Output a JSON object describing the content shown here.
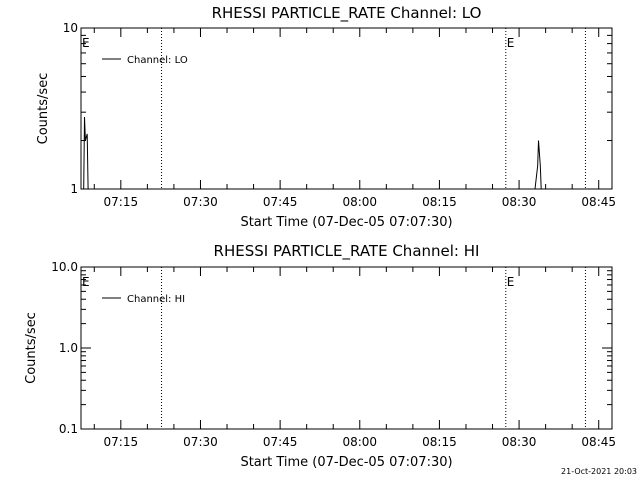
{
  "timestamp": "21-Oct-2021 20:03",
  "chart_data": [
    {
      "type": "line",
      "title": "RHESSI PARTICLE_RATE Channel: LO",
      "xlabel": "Start Time (07-Dec-05 07:07:30)",
      "ylabel": "Counts/sec",
      "yscale": "log",
      "ylim": [
        1,
        10
      ],
      "ytick_values": [
        1,
        10
      ],
      "ytick_labels": [
        "1",
        "10"
      ],
      "xlim": [
        "07:07:30",
        "08:47:30"
      ],
      "xtick_values": [
        "07:15",
        "07:30",
        "07:45",
        "08:00",
        "08:15",
        "08:30",
        "08:45"
      ],
      "xtick_labels": [
        "07:15",
        "07:30",
        "07:45",
        "08:00",
        "08:15",
        "08:30",
        "08:45"
      ],
      "vlines": [
        {
          "x": "07:22:40",
          "style": "dotted",
          "label": ""
        },
        {
          "x": "08:27:30",
          "style": "dotted",
          "label": "E"
        },
        {
          "x": "08:42:30",
          "style": "dotted",
          "label": ""
        }
      ],
      "corner_label": "E",
      "legend_position": "top-left",
      "series": [
        {
          "name": "Channel: LO",
          "x": [
            "07:07:30",
            "07:08:00",
            "07:08:10",
            "07:08:20",
            "07:08:40",
            "07:08:50",
            "07:09:00",
            "07:09:30",
            "08:32:00",
            "08:32:30",
            "08:33:00",
            "08:33:30",
            "08:33:40",
            "08:34:00",
            "08:34:10"
          ],
          "y": [
            1.0,
            1.0,
            2.8,
            2.0,
            2.2,
            1.0,
            1.0,
            1.0,
            1.0,
            1.0,
            1.0,
            1.4,
            2.0,
            1.4,
            1.0
          ]
        }
      ]
    },
    {
      "type": "line",
      "title": "RHESSI PARTICLE_RATE Channel: HI",
      "xlabel": "Start Time (07-Dec-05 07:07:30)",
      "ylabel": "Counts/sec",
      "yscale": "log",
      "ylim": [
        0.1,
        10
      ],
      "ytick_values": [
        0.1,
        1,
        10
      ],
      "ytick_labels": [
        "0.1",
        "1.0",
        "10.0"
      ],
      "xlim": [
        "07:07:30",
        "08:47:30"
      ],
      "xtick_values": [
        "07:15",
        "07:30",
        "07:45",
        "08:00",
        "08:15",
        "08:30",
        "08:45"
      ],
      "xtick_labels": [
        "07:15",
        "07:30",
        "07:45",
        "08:00",
        "08:15",
        "08:30",
        "08:45"
      ],
      "vlines": [
        {
          "x": "07:22:40",
          "style": "dotted",
          "label": ""
        },
        {
          "x": "08:27:30",
          "style": "dotted",
          "label": "E"
        },
        {
          "x": "08:42:30",
          "style": "dotted",
          "label": ""
        }
      ],
      "corner_label": "E",
      "legend_position": "top-left",
      "series": [
        {
          "name": "Channel: HI",
          "x": [],
          "y": []
        }
      ]
    }
  ]
}
